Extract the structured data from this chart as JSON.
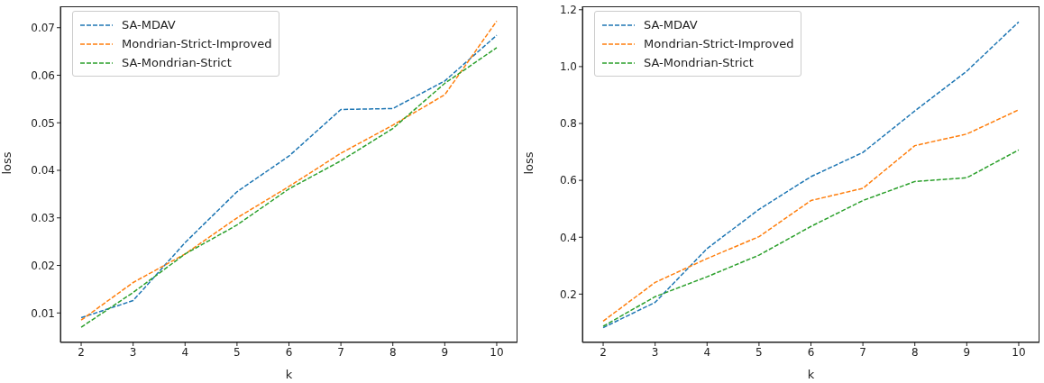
{
  "chart_data": [
    {
      "type": "line",
      "xlabel": "k",
      "ylabel": "loss",
      "x": [
        2,
        3,
        4,
        5,
        6,
        7,
        8,
        9,
        10
      ],
      "xlim": [
        1.6,
        10.4
      ],
      "xticks": [
        2,
        3,
        4,
        5,
        6,
        7,
        8,
        9,
        10
      ],
      "ylim": [
        0.0038,
        0.0745
      ],
      "yticks": [
        0.01,
        0.02,
        0.03,
        0.04,
        0.05,
        0.06,
        0.07
      ],
      "grid": false,
      "legend": "top left",
      "marker": "none",
      "line_style": "dashed",
      "series": [
        {
          "name": "SA-MDAV",
          "color": "#1f77b4",
          "values": [
            0.009,
            0.0126,
            0.0248,
            0.0355,
            0.043,
            0.0528,
            0.053,
            0.0588,
            0.0684
          ]
        },
        {
          "name": "Mondrian-Strict-Improved",
          "color": "#ff7f0e",
          "values": [
            0.0085,
            0.0164,
            0.0224,
            0.03,
            0.0366,
            0.0436,
            0.0495,
            0.0559,
            0.0714
          ]
        },
        {
          "name": "SA-Mondrian-Strict",
          "color": "#2ca02c",
          "values": [
            0.007,
            0.0143,
            0.0224,
            0.0285,
            0.0361,
            0.042,
            0.0488,
            0.0583,
            0.0658
          ]
        }
      ]
    },
    {
      "type": "line",
      "xlabel": "k",
      "ylabel": "loss",
      "x": [
        2,
        3,
        4,
        5,
        6,
        7,
        8,
        9,
        10
      ],
      "xlim": [
        1.6,
        10.4
      ],
      "xticks": [
        2,
        3,
        4,
        5,
        6,
        7,
        8,
        9,
        10
      ],
      "ylim": [
        0.03,
        1.212
      ],
      "yticks": [
        0.2,
        {
          "value": 0.4,
          "label": "0.4"
        },
        {
          "value": 0.6,
          "label": "0.6"
        },
        {
          "value": 0.8,
          "label": "0.8"
        },
        {
          "value": 1.0,
          "label": "1.0"
        },
        {
          "value": 1.2,
          "label": "1.2"
        }
      ],
      "grid": false,
      "legend": "top left",
      "marker": "none",
      "line_style": "dashed",
      "series": [
        {
          "name": "SA-MDAV",
          "color": "#1f77b4",
          "values": [
            0.082,
            0.171,
            0.36,
            0.498,
            0.613,
            0.698,
            0.844,
            0.984,
            1.157
          ]
        },
        {
          "name": "Mondrian-Strict-Improved",
          "color": "#ff7f0e",
          "values": [
            0.105,
            0.241,
            0.325,
            0.402,
            0.529,
            0.572,
            0.722,
            0.763,
            0.848
          ]
        },
        {
          "name": "SA-Mondrian-Strict",
          "color": "#2ca02c",
          "values": [
            0.087,
            0.191,
            0.261,
            0.337,
            0.438,
            0.529,
            0.596,
            0.609,
            0.707
          ]
        }
      ]
    }
  ]
}
